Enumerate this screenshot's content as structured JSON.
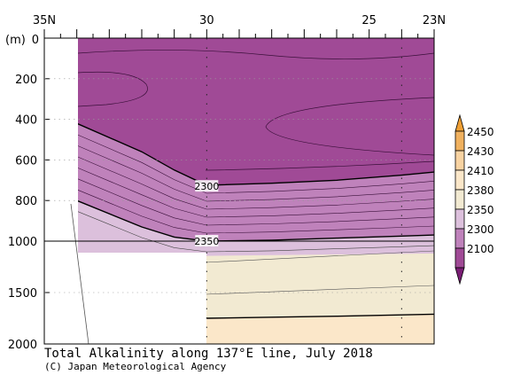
{
  "chart_data": {
    "type": "heatmap",
    "title": "Total Alkalinity along 137°E line, July 2018",
    "credit": "(C) Japan Meteorological Agency",
    "x_axis": {
      "ticks": [
        {
          "value": 35,
          "label": "35N"
        },
        {
          "value": 30,
          "label": "30"
        },
        {
          "value": 25,
          "label": "25"
        },
        {
          "value": 23,
          "label": "23N"
        }
      ],
      "range": [
        35,
        23
      ]
    },
    "y_axis": {
      "unit_label": "(m)",
      "ticks": [
        {
          "value": 0,
          "label": "0"
        },
        {
          "value": 200,
          "label": "200"
        },
        {
          "value": 400,
          "label": "400"
        },
        {
          "value": 600,
          "label": "600"
        },
        {
          "value": 800,
          "label": "800"
        },
        {
          "value": 1000,
          "label": "1000"
        },
        {
          "value": 1500,
          "label": "1500"
        },
        {
          "value": 2000,
          "label": "2000"
        }
      ],
      "scale": "piecewise: 0-1000 m upper panel, 1000-2000 m lower panel",
      "range": [
        0,
        2000
      ],
      "inverted": true
    },
    "colorbar": {
      "levels": [
        {
          "value": 2100,
          "label": "2100",
          "color": "#a04a96"
        },
        {
          "value": 2300,
          "label": "2300",
          "color": "#bf82bb"
        },
        {
          "value": 2350,
          "label": "2350",
          "color": "#dcc0dc"
        },
        {
          "value": 2380,
          "label": "2380",
          "color": "#f2ead2"
        },
        {
          "value": 2410,
          "label": "2410",
          "color": "#fbe7c9"
        },
        {
          "value": 2430,
          "label": "2430",
          "color": "#f8d3a2"
        },
        {
          "value": 2450,
          "label": "2450",
          "color": "#f0b15f"
        }
      ],
      "under_color": "#7a1d74",
      "over_color": "#f0a035"
    },
    "contour_labels": [
      {
        "label": "2300",
        "lat": 30,
        "depth": 730
      },
      {
        "label": "2350",
        "lat": 30,
        "depth": 1000
      }
    ],
    "contour_2300_depths": [
      {
        "lat": 35,
        "depth": 360
      },
      {
        "lat": 34,
        "depth": 420
      },
      {
        "lat": 32,
        "depth": 560
      },
      {
        "lat": 31,
        "depth": 650
      },
      {
        "lat": 30,
        "depth": 725
      },
      {
        "lat": 28,
        "depth": 715
      },
      {
        "lat": 26,
        "depth": 700
      },
      {
        "lat": 24,
        "depth": 675
      },
      {
        "lat": 23,
        "depth": 660
      }
    ],
    "contour_2350_depths": [
      {
        "lat": 35,
        "depth": 720
      },
      {
        "lat": 34,
        "depth": 800
      },
      {
        "lat": 32,
        "depth": 930
      },
      {
        "lat": 31,
        "depth": 980
      },
      {
        "lat": 30,
        "depth": 1000
      },
      {
        "lat": 28,
        "depth": 995
      },
      {
        "lat": 26,
        "depth": 985
      },
      {
        "lat": 24,
        "depth": 975
      },
      {
        "lat": 23,
        "depth": 970
      }
    ],
    "contour_2410_depths": [
      {
        "lat": 30,
        "depth": 1750
      },
      {
        "lat": 28,
        "depth": 1740
      },
      {
        "lat": 26,
        "depth": 1730
      },
      {
        "lat": 23,
        "depth": 1710
      }
    ]
  }
}
